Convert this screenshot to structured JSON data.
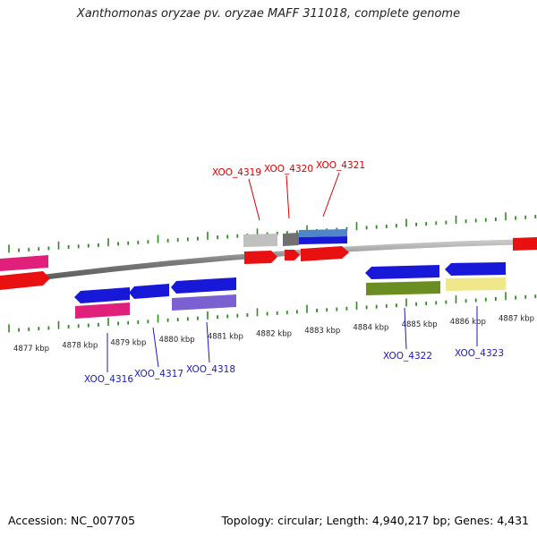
{
  "title": "Xanthomonas oryzae pv. oryzae MAFF 311018, complete genome",
  "footer": {
    "accession": "Accession: NC_007705",
    "topology": "Topology: circular; Length: 4,940,217 bp; Genes: 4,431"
  },
  "scale": {
    "ticks": [
      "4877 kbp",
      "4878 kbp",
      "4879 kbp",
      "4880 kbp",
      "4881 kbp",
      "4882 kbp",
      "4883 kbp",
      "4884 kbp",
      "4885 kbp",
      "4886 kbp",
      "4887 kbp"
    ]
  },
  "colors": {
    "backbone": "#8a8a8a",
    "tick": "#2e8b1e",
    "label_red": "#d40000",
    "label_blue": "#1a1ab8"
  },
  "gene_labels": {
    "top": [
      "XOO_4319",
      "XOO_4320",
      "XOO_4321"
    ],
    "bottom": [
      "XOO_4316",
      "XOO_4317",
      "XOO_4318",
      "XOO_4322",
      "XOO_4323"
    ]
  }
}
